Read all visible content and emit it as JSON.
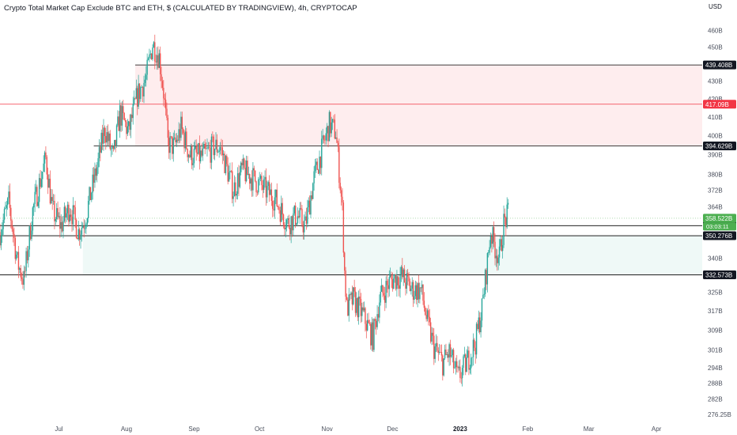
{
  "chart_data": {
    "type": "candlestick",
    "title": "Crypto Total Market Cap Exclude BTC and ETH, $ (CALCULATED BY TRADINGVIEW), 4h, CRYPTOCAP",
    "currency_label": "USD",
    "y_scale": "log",
    "ylim": [
      274,
      470
    ],
    "xlim": [
      "2022-06-04",
      "2023-04-22"
    ],
    "y_ticks": [
      {
        "value": 460,
        "label": "460B"
      },
      {
        "value": 450,
        "label": "450B"
      },
      {
        "value": 430,
        "label": "430B"
      },
      {
        "value": 420,
        "label": "420B"
      },
      {
        "value": 410,
        "label": "410B"
      },
      {
        "value": 400,
        "label": "400B"
      },
      {
        "value": 390,
        "label": "390B"
      },
      {
        "value": 380,
        "label": "380B"
      },
      {
        "value": 372,
        "label": "372B"
      },
      {
        "value": 364,
        "label": "364B"
      },
      {
        "value": 340,
        "label": "340B"
      },
      {
        "value": 325,
        "label": "325B"
      },
      {
        "value": 317,
        "label": "317B"
      },
      {
        "value": 309,
        "label": "309B"
      },
      {
        "value": 301,
        "label": "301B"
      },
      {
        "value": 294,
        "label": "294B"
      },
      {
        "value": 288,
        "label": "288B"
      },
      {
        "value": 282,
        "label": "282B"
      },
      {
        "value": 276.25,
        "label": "276.25B"
      }
    ],
    "x_ticks": [
      {
        "date": "2022-07-01",
        "label": "Jul",
        "year": false
      },
      {
        "date": "2022-08-01",
        "label": "Aug",
        "year": false
      },
      {
        "date": "2022-09-01",
        "label": "Sep",
        "year": false
      },
      {
        "date": "2022-10-01",
        "label": "Oct",
        "year": false
      },
      {
        "date": "2022-11-01",
        "label": "Nov",
        "year": false
      },
      {
        "date": "2022-12-01",
        "label": "Dec",
        "year": false
      },
      {
        "date": "2023-01-01",
        "label": "2023",
        "year": true
      },
      {
        "date": "2023-02-01",
        "label": "Feb",
        "year": false
      },
      {
        "date": "2023-03-01",
        "label": "Mar",
        "year": false
      },
      {
        "date": "2023-04-01",
        "label": "Apr",
        "year": false
      }
    ],
    "horizontal_levels": [
      {
        "value": 439.408,
        "label": "439.408B",
        "color": "#000000",
        "start": "2022-08-05"
      },
      {
        "value": 417.09,
        "label": "417.09B",
        "color": "#f23645",
        "start": "2022-06-04"
      },
      {
        "value": 394.629,
        "label": "394.629B",
        "color": "#000000",
        "start": "2022-07-17"
      },
      {
        "value": 354.988,
        "label": "354.988B",
        "color": "#000000",
        "start": "2022-06-04"
      },
      {
        "value": 350.276,
        "label": "350.276B",
        "color": "#000000",
        "start": "2022-06-04"
      },
      {
        "value": 332.573,
        "label": "332.573B",
        "color": "#000000",
        "start": "2022-06-04"
      }
    ],
    "zones": [
      {
        "from": 394.629,
        "to": 439.408,
        "start": "2022-08-05",
        "color": "#f23645",
        "opacity": 0.09
      },
      {
        "from": 332.573,
        "to": 350.276,
        "start": "2022-07-12",
        "color": "#22ab94",
        "opacity": 0.07
      }
    ],
    "last_price": {
      "value": 358.522,
      "label": "358.522B",
      "countdown": "03:03:11",
      "color": "#4caf50"
    },
    "bull_color": "#26a69a",
    "bear_color": "#ef5350",
    "anchors": [
      [
        "2022-06-04",
        352
      ],
      [
        "2022-06-08",
        366
      ],
      [
        "2022-06-12",
        338
      ],
      [
        "2022-06-15",
        330
      ],
      [
        "2022-06-19",
        362
      ],
      [
        "2022-06-25",
        388
      ],
      [
        "2022-06-28",
        362
      ],
      [
        "2022-07-02",
        355
      ],
      [
        "2022-07-06",
        364
      ],
      [
        "2022-07-10",
        352
      ],
      [
        "2022-07-13",
        358
      ],
      [
        "2022-07-19",
        386
      ],
      [
        "2022-07-22",
        404
      ],
      [
        "2022-07-26",
        388
      ],
      [
        "2022-07-29",
        412
      ],
      [
        "2022-08-02",
        402
      ],
      [
        "2022-08-06",
        422
      ],
      [
        "2022-08-10",
        432
      ],
      [
        "2022-08-13",
        452
      ],
      [
        "2022-08-16",
        444
      ],
      [
        "2022-08-18",
        424
      ],
      [
        "2022-08-20",
        396
      ],
      [
        "2022-08-23",
        394
      ],
      [
        "2022-08-26",
        404
      ],
      [
        "2022-08-30",
        390
      ],
      [
        "2022-09-05",
        389
      ],
      [
        "2022-09-10",
        394
      ],
      [
        "2022-09-13",
        394
      ],
      [
        "2022-09-19",
        372
      ],
      [
        "2022-09-23",
        382
      ],
      [
        "2022-09-28",
        378
      ],
      [
        "2022-10-04",
        372
      ],
      [
        "2022-10-08",
        368
      ],
      [
        "2022-10-14",
        356
      ],
      [
        "2022-10-18",
        360
      ],
      [
        "2022-10-22",
        355
      ],
      [
        "2022-10-26",
        378
      ],
      [
        "2022-10-30",
        394
      ],
      [
        "2022-11-02",
        406
      ],
      [
        "2022-11-05",
        402
      ],
      [
        "2022-11-08",
        362
      ],
      [
        "2022-11-09",
        334
      ],
      [
        "2022-11-10",
        318
      ],
      [
        "2022-11-13",
        322
      ],
      [
        "2022-11-17",
        316
      ],
      [
        "2022-11-22",
        306
      ],
      [
        "2022-11-25",
        322
      ],
      [
        "2022-11-30",
        330
      ],
      [
        "2022-12-05",
        332
      ],
      [
        "2022-12-10",
        326
      ],
      [
        "2022-12-14",
        326
      ],
      [
        "2022-12-17",
        312
      ],
      [
        "2022-12-20",
        302
      ],
      [
        "2022-12-24",
        296
      ],
      [
        "2022-12-27",
        300
      ],
      [
        "2022-12-31",
        290
      ],
      [
        "2023-01-04",
        296
      ],
      [
        "2023-01-08",
        304
      ],
      [
        "2023-01-11",
        318
      ],
      [
        "2023-01-13",
        334
      ],
      [
        "2023-01-15",
        352
      ],
      [
        "2023-01-17",
        345
      ],
      [
        "2023-01-19",
        340
      ],
      [
        "2023-01-21",
        356
      ],
      [
        "2023-01-23",
        360
      ]
    ]
  }
}
